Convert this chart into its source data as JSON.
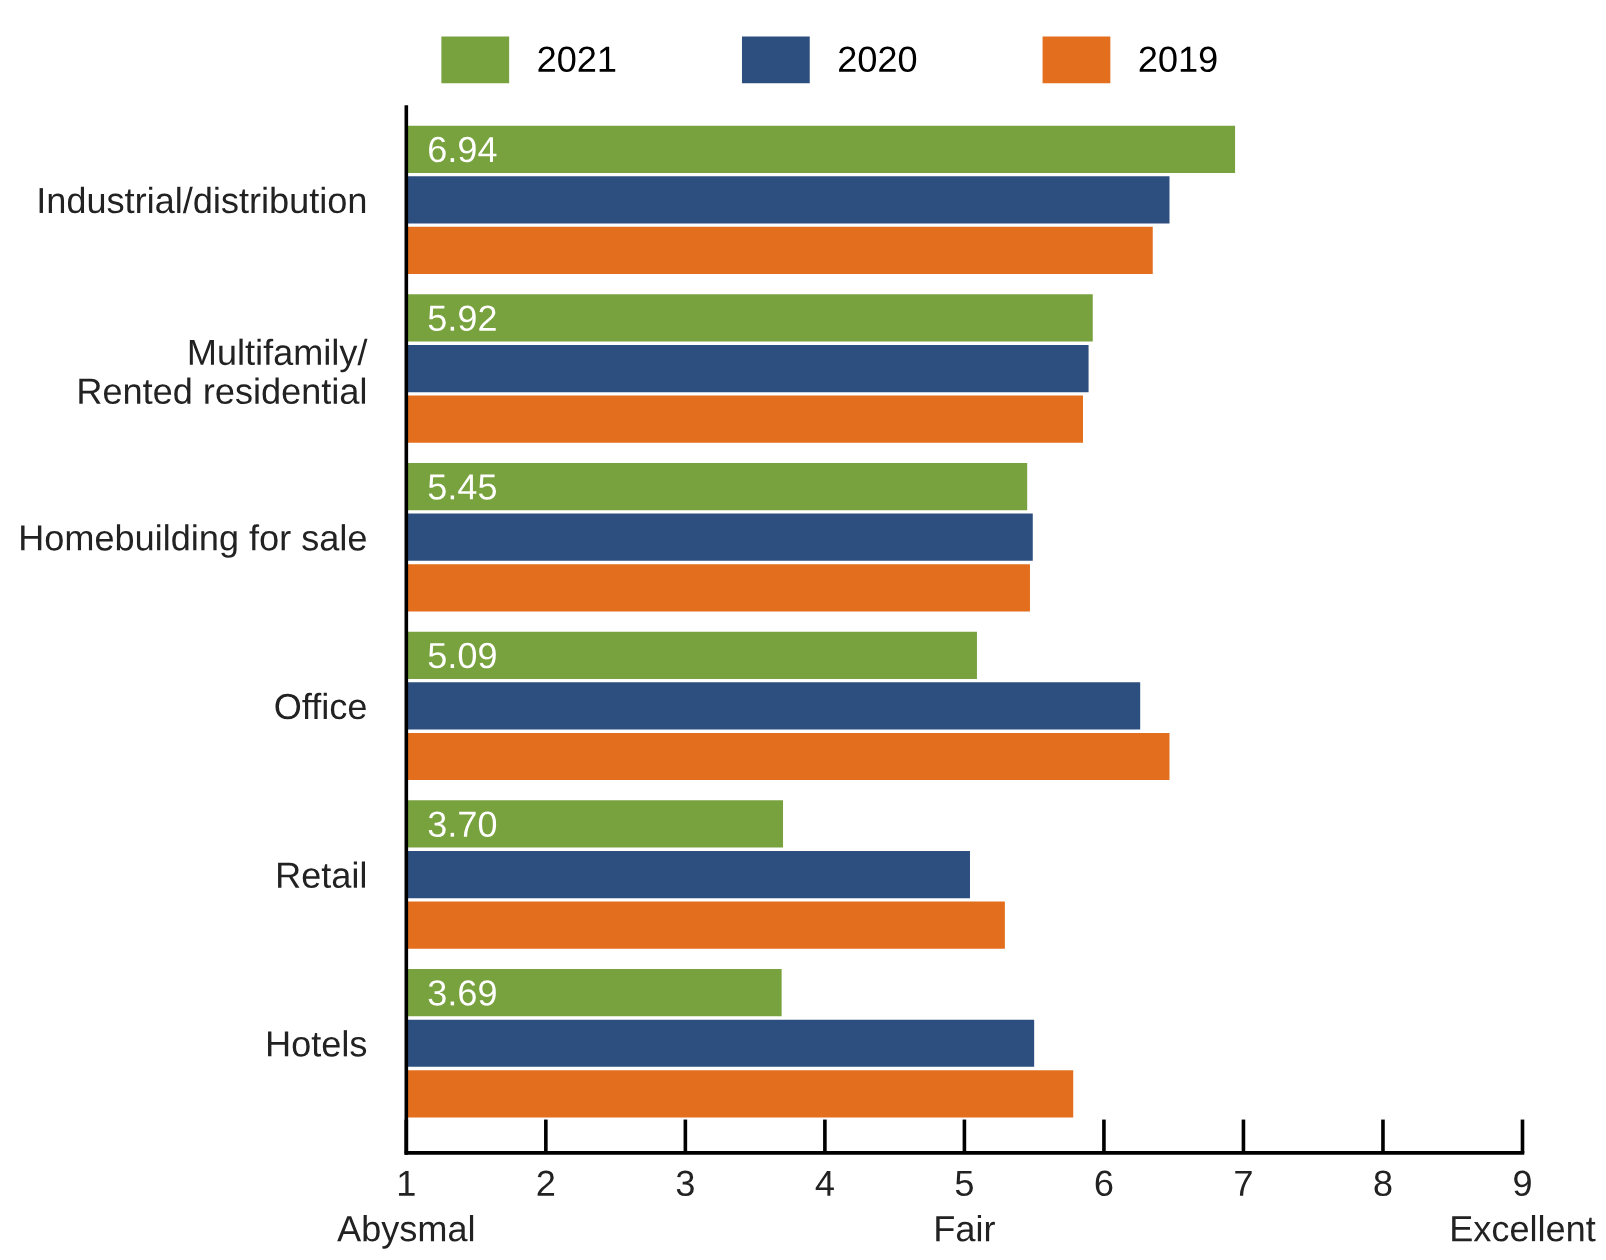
{
  "chart_data": {
    "type": "bar",
    "orientation": "horizontal",
    "categories": [
      "Industrial/distribution",
      "Multifamily/\nRented residential",
      "Homebuilding for sale",
      "Office",
      "Retail",
      "Hotels"
    ],
    "series": [
      {
        "name": "2021",
        "color": "#78a23e",
        "values": [
          6.94,
          5.92,
          5.45,
          5.09,
          3.7,
          3.69
        ],
        "value_labels": [
          "6.94",
          "5.92",
          "5.45",
          "5.09",
          "3.70",
          "3.69"
        ]
      },
      {
        "name": "2020",
        "color": "#2d4f7f",
        "values": [
          6.47,
          5.89,
          5.49,
          6.26,
          5.04,
          5.5
        ]
      },
      {
        "name": "2019",
        "color": "#e36f1e",
        "values": [
          6.35,
          5.85,
          5.47,
          6.47,
          5.29,
          5.78
        ]
      }
    ],
    "xlim": [
      1,
      9
    ],
    "xticks": [
      {
        "value": 1,
        "label": "1\nAbysmal"
      },
      2,
      3,
      4,
      {
        "value": 5,
        "label": "5\nFair"
      },
      6,
      7,
      8,
      {
        "value": 9,
        "label": "9\nExcellent"
      }
    ],
    "legend": "top",
    "grid": false
  }
}
